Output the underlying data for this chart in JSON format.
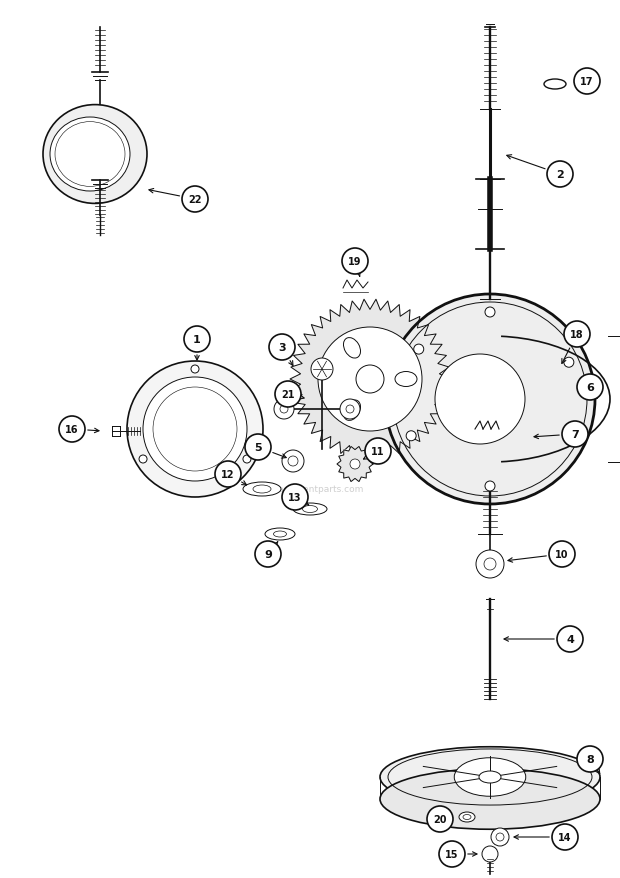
{
  "bg_color": "#ffffff",
  "line_color": "#111111",
  "watermark": "ereplacementparts.com",
  "fig_w": 6.2,
  "fig_h": 8.79,
  "dpi": 100
}
